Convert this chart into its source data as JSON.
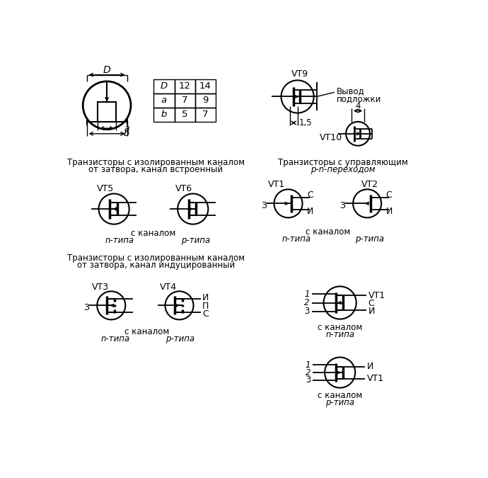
{
  "bg_color": "#ffffff",
  "table_data": [
    [
      "D",
      "12",
      "14"
    ],
    [
      "a",
      "7",
      "9"
    ],
    [
      "b",
      "5",
      "7"
    ]
  ],
  "mid_left_title1": "Транзисторы с изолированным каналом",
  "mid_left_title2": "от затвора, канал встроенный",
  "mid_right_title1": "Транзисторы с управляющим",
  "mid_right_title2": "p-n-переходом",
  "bot_left_title1": "Транзисторы с изолированным каналом",
  "bot_left_title2": "от затвора, канал индуцированный",
  "label_VT5": "VT5",
  "label_VT6": "VT6",
  "label_VT1": "VT1",
  "label_VT2": "VT2",
  "label_VT3": "VT3",
  "label_VT4": "VT4",
  "label_VT9": "VT9",
  "label_VT10": "VT10",
  "label_vyvod": "Вывод\nподложки",
  "label_15": "1,5",
  "label_4": "4",
  "label_C": "C",
  "label_I": "И",
  "label_Z": "З",
  "label_P": "П",
  "label_S": "С",
  "label_s_kanalom": "с каналом",
  "label_n": "n-типа",
  "label_p": "p-типа",
  "label_D": "D",
  "label_a": "a",
  "label_b": "b",
  "label_n_kan": "с каналом\nn-типа",
  "label_p_kan": "с каналом\np-типа"
}
